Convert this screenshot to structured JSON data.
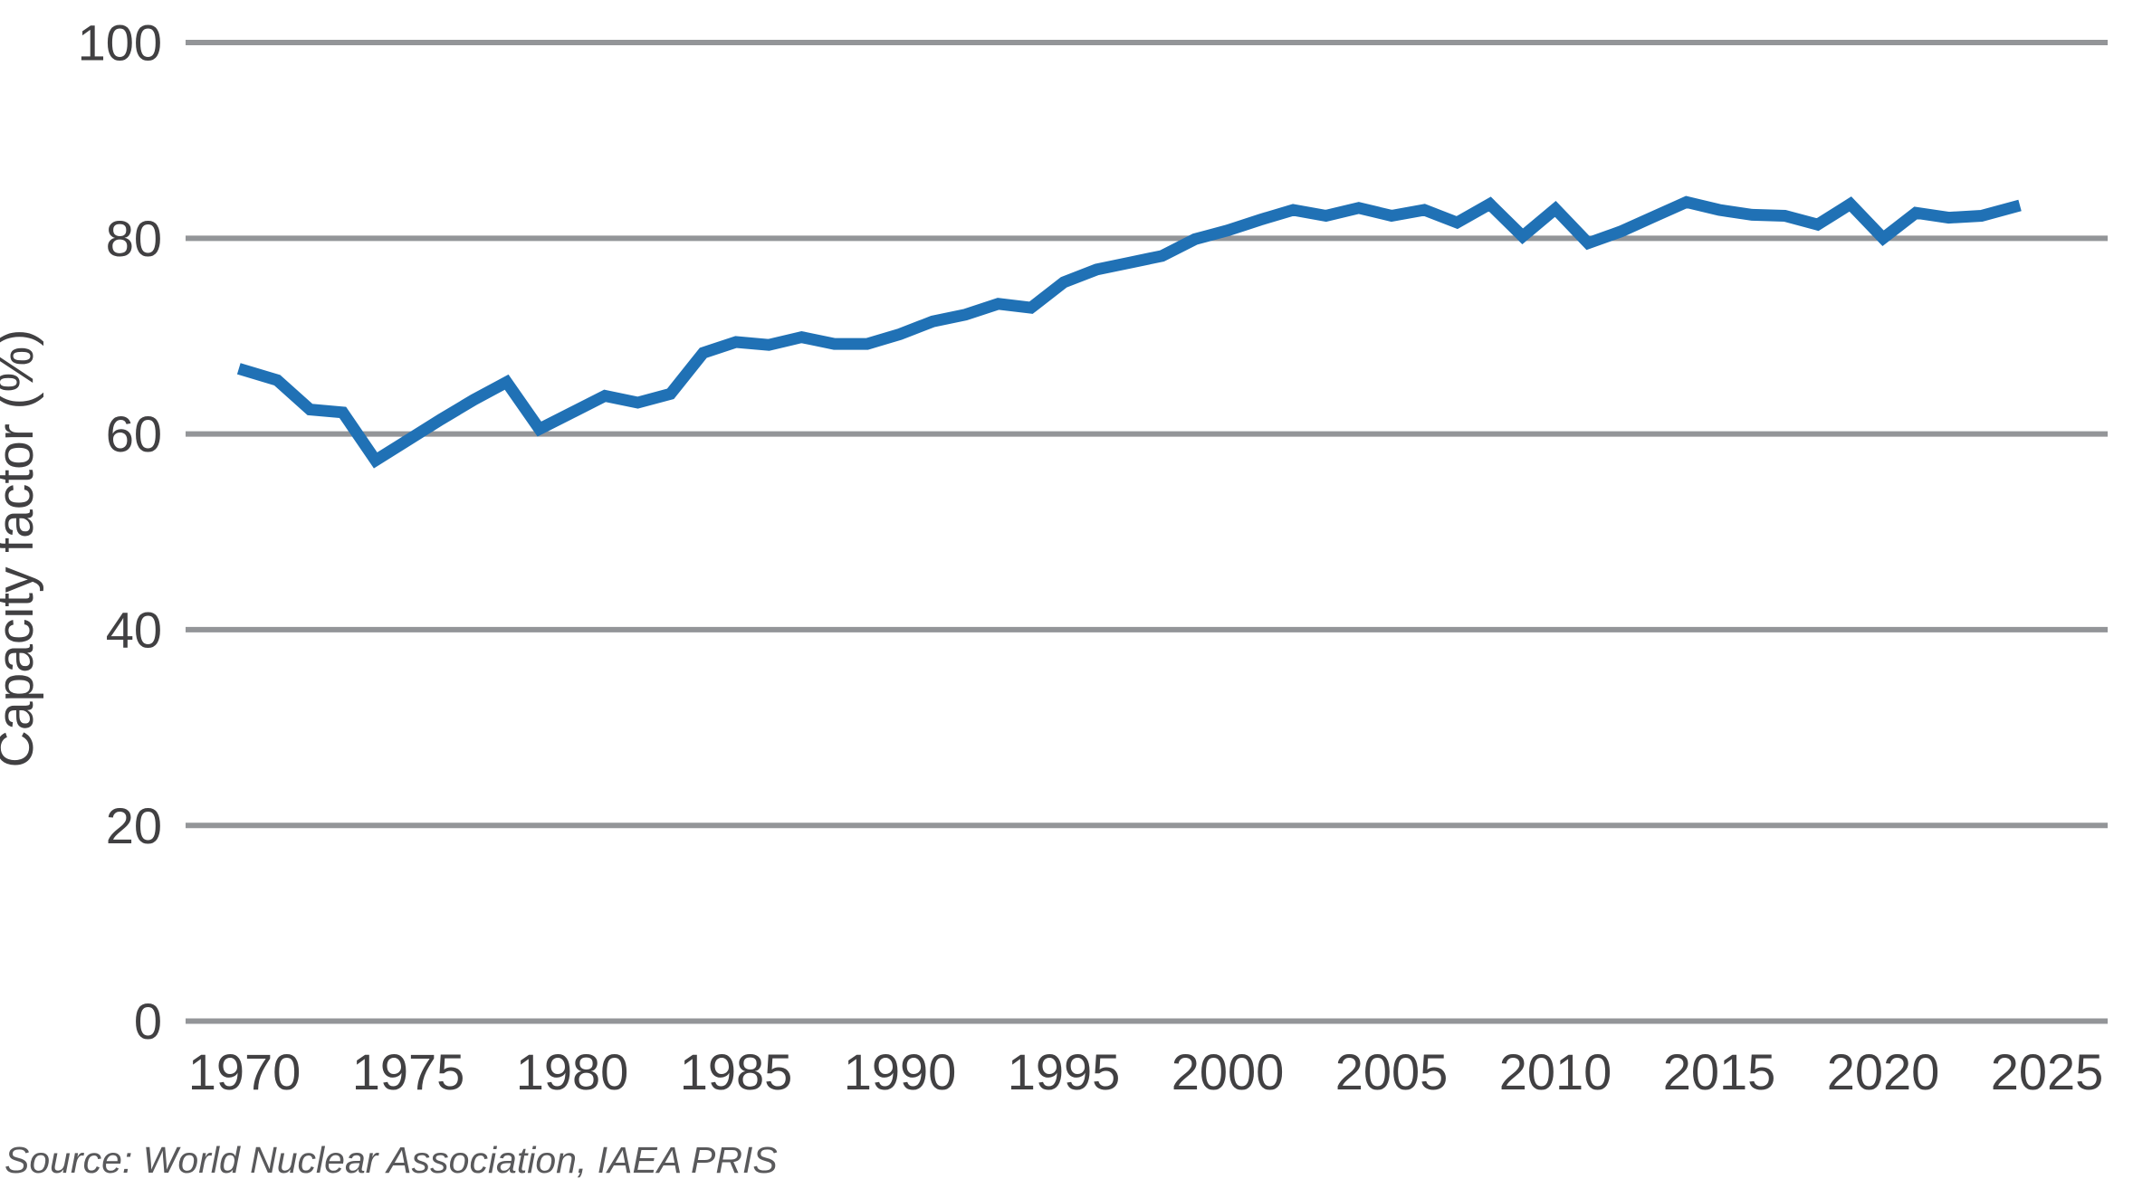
{
  "chart_data": {
    "type": "line",
    "title": "",
    "xlabel": "",
    "ylabel": "Capacity factor (%)",
    "source_note": "Source: World Nuclear Association, IAEA PRIS",
    "x_ticks": [
      "1970",
      "1975",
      "1980",
      "1985",
      "1990",
      "1995",
      "2000",
      "2005",
      "2010",
      "2015",
      "2020",
      "2025"
    ],
    "y_ticks": [
      "0",
      "20",
      "40",
      "60",
      "80",
      "100"
    ],
    "y_tick_values": [
      0,
      20,
      40,
      60,
      80,
      100
    ],
    "x_tick_values": [
      1970,
      1975,
      1980,
      1985,
      1990,
      1995,
      2000,
      2005,
      2010,
      2015,
      2020,
      2025
    ],
    "ylim": [
      0,
      100
    ],
    "xlim_years": [
      1968.2,
      2027.1
    ],
    "grid": "horizontal-only",
    "legend_position": "none",
    "line_color": "#2071B5",
    "grid_color": "#939598",
    "tick_color": "#414042",
    "source_color": "#59595B",
    "x": [
      1970,
      1971,
      1972,
      1973,
      1974,
      1975,
      1976,
      1977,
      1978,
      1979,
      1980,
      1981,
      1982,
      1983,
      1984,
      1985,
      1986,
      1987,
      1988,
      1989,
      1990,
      1991,
      1992,
      1993,
      1994,
      1995,
      1996,
      1997,
      1998,
      1999,
      2000,
      2001,
      2002,
      2003,
      2004,
      2005,
      2006,
      2007,
      2008,
      2009,
      2010,
      2011,
      2012,
      2013,
      2014,
      2015,
      2016,
      2017,
      2018,
      2019,
      2020,
      2021,
      2022,
      2023,
      2024
    ],
    "values": [
      66.5,
      65.5,
      62.5,
      62.2,
      57.3,
      59.4,
      61.5,
      63.5,
      65.3,
      60.5,
      62.2,
      63.9,
      63.2,
      64.1,
      68.3,
      69.4,
      69.1,
      69.9,
      69.2,
      69.2,
      70.2,
      71.5,
      72.2,
      73.3,
      72.9,
      75.5,
      76.8,
      77.5,
      78.2,
      79.9,
      80.8,
      81.9,
      82.9,
      82.3,
      83.1,
      82.3,
      82.9,
      81.6,
      83.5,
      80.2,
      83.0,
      79.5,
      80.7,
      82.2,
      83.7,
      82.9,
      82.4,
      82.3,
      81.4,
      83.5,
      80.0,
      82.6,
      82.1,
      82.3,
      83.2
    ]
  }
}
